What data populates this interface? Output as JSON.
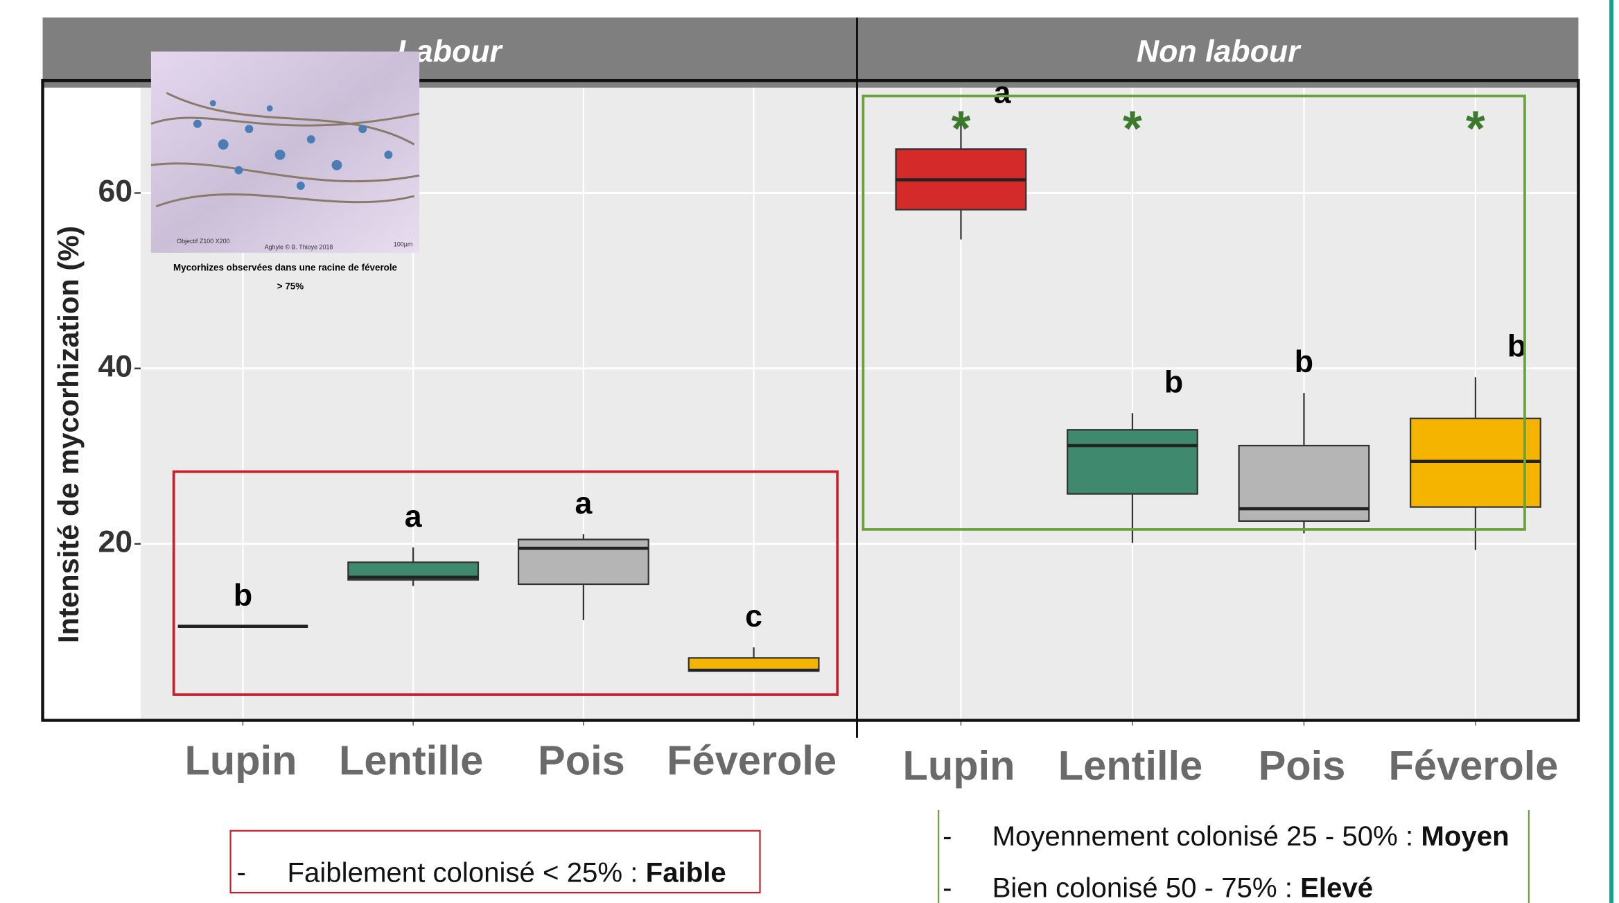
{
  "chart_data": [
    {
      "type": "box",
      "title": "Labour",
      "y_label": "Intensité de mycorhization (%)",
      "categories": [
        "Lupin",
        "Lentille",
        "Pois",
        "Féverole"
      ],
      "values": [
        {
          "min": 10.6,
          "q1": 10.6,
          "median": 10.6,
          "q3": 10.6,
          "max": 10.6
        },
        {
          "min": 15.2,
          "q1": 15.9,
          "median": 16.2,
          "q3": 17.9,
          "max": 19.6
        },
        {
          "min": 11.3,
          "q1": 15.4,
          "median": 19.5,
          "q3": 20.5,
          "max": 21.1
        },
        {
          "min": 5.5,
          "q1": 5.5,
          "median": 5.6,
          "q3": 7.0,
          "max": 8.2
        }
      ],
      "colors": [
        "#222222",
        "#3f8a6e",
        "#b5b5b5",
        "#f5b400"
      ],
      "group_letters": [
        "b",
        "a",
        "a",
        "c"
      ],
      "significance": [
        null,
        null,
        null,
        null
      ],
      "ylim": [
        0,
        72
      ],
      "yticks": [
        20,
        40,
        60
      ],
      "grid": true
    },
    {
      "type": "box",
      "title": "Non labour",
      "categories": [
        "Lupin",
        "Lentille",
        "Pois",
        "Féverole"
      ],
      "values": [
        {
          "min": 54.7,
          "q1": 58.1,
          "median": 61.5,
          "q3": 65.0,
          "max": 67.9
        },
        {
          "min": 20.1,
          "q1": 25.7,
          "median": 31.2,
          "q3": 33.0,
          "max": 34.9
        },
        {
          "min": 21.2,
          "q1": 22.6,
          "median": 24.0,
          "q3": 31.2,
          "max": 37.2
        },
        {
          "min": 19.3,
          "q1": 24.2,
          "median": 29.4,
          "q3": 34.3,
          "max": 39.0
        }
      ],
      "colors": [
        "#d42a2a",
        "#3f8a6e",
        "#b5b5b5",
        "#f5b400"
      ],
      "group_letters": [
        "a",
        "b",
        "b",
        "b"
      ],
      "significance": [
        "*",
        "*",
        null,
        "*"
      ],
      "ylim": [
        0,
        72
      ],
      "grid": true
    }
  ],
  "inset": {
    "objective": "Objectif Z100 X200",
    "credit": "Aghyle © B. Thioye 2018",
    "scale": "100µm",
    "caption": "Mycorhizes observées dans une racine de féverole",
    "caption_2": "> 75%"
  },
  "notes": [
    {
      "dash": "-",
      "text": "Faiblement  colonisé < 25% :",
      "level": "Faible"
    },
    {
      "dash": "-",
      "text": "Moyennement  colonisé 25 - 50% :",
      "level": "Moyen"
    },
    {
      "dash": "-",
      "text": "Bien colonisé 50 - 75% :",
      "level": "Elevé"
    }
  ]
}
